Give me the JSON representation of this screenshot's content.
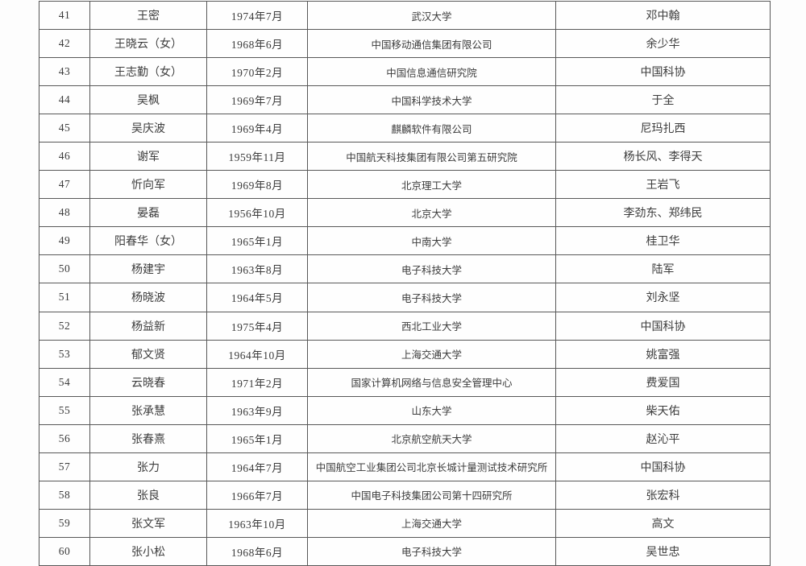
{
  "page": {
    "background_color": "#fdfdfd",
    "table_border_color": "#585858",
    "table_text_color": "#3c3c3c"
  },
  "table": {
    "visible_row_range": "41-60",
    "columns": [
      "serial_number",
      "name",
      "birth_date",
      "organization",
      "recommender"
    ],
    "rows": [
      {
        "no": "41",
        "name": "王密",
        "birth": "1974年7月",
        "org": "武汉大学",
        "rec": "邓中翰"
      },
      {
        "no": "42",
        "name": "王晓云（女）",
        "birth": "1968年6月",
        "org": "中国移动通信集团有限公司",
        "rec": "余少华"
      },
      {
        "no": "43",
        "name": "王志勤（女）",
        "birth": "1970年2月",
        "org": "中国信息通信研究院",
        "rec": "中国科协"
      },
      {
        "no": "44",
        "name": "吴枫",
        "birth": "1969年7月",
        "org": "中国科学技术大学",
        "rec": "于全"
      },
      {
        "no": "45",
        "name": "吴庆波",
        "birth": "1969年4月",
        "org": "麒麟软件有限公司",
        "rec": "尼玛扎西"
      },
      {
        "no": "46",
        "name": "谢军",
        "birth": "1959年11月",
        "org": "中国航天科技集团有限公司第五研究院",
        "rec": "杨长风、李得天"
      },
      {
        "no": "47",
        "name": "忻向军",
        "birth": "1969年8月",
        "org": "北京理工大学",
        "rec": "王岩飞"
      },
      {
        "no": "48",
        "name": "晏磊",
        "birth": "1956年10月",
        "org": "北京大学",
        "rec": "李劲东、郑纬民"
      },
      {
        "no": "49",
        "name": "阳春华（女）",
        "birth": "1965年1月",
        "org": "中南大学",
        "rec": "桂卫华"
      },
      {
        "no": "50",
        "name": "杨建宇",
        "birth": "1963年8月",
        "org": "电子科技大学",
        "rec": "陆军"
      },
      {
        "no": "51",
        "name": "杨晓波",
        "birth": "1964年5月",
        "org": "电子科技大学",
        "rec": "刘永坚"
      },
      {
        "no": "52",
        "name": "杨益新",
        "birth": "1975年4月",
        "org": "西北工业大学",
        "rec": "中国科协"
      },
      {
        "no": "53",
        "name": "郁文贤",
        "birth": "1964年10月",
        "org": "上海交通大学",
        "rec": "姚富强"
      },
      {
        "no": "54",
        "name": "云晓春",
        "birth": "1971年2月",
        "org": "国家计算机网络与信息安全管理中心",
        "rec": "费爱国"
      },
      {
        "no": "55",
        "name": "张承慧",
        "birth": "1963年9月",
        "org": "山东大学",
        "rec": "柴天佑"
      },
      {
        "no": "56",
        "name": "张春熹",
        "birth": "1965年1月",
        "org": "北京航空航天大学",
        "rec": "赵沁平"
      },
      {
        "no": "57",
        "name": "张力",
        "birth": "1964年7月",
        "org": "中国航空工业集团公司北京长城计量测试技术研究所",
        "rec": "中国科协"
      },
      {
        "no": "58",
        "name": "张良",
        "birth": "1966年7月",
        "org": "中国电子科技集团公司第十四研究所",
        "rec": "张宏科"
      },
      {
        "no": "59",
        "name": "张文军",
        "birth": "1963年10月",
        "org": "上海交通大学",
        "rec": "高文"
      },
      {
        "no": "60",
        "name": "张小松",
        "birth": "1968年6月",
        "org": "电子科技大学",
        "rec": "吴世忠"
      }
    ]
  }
}
